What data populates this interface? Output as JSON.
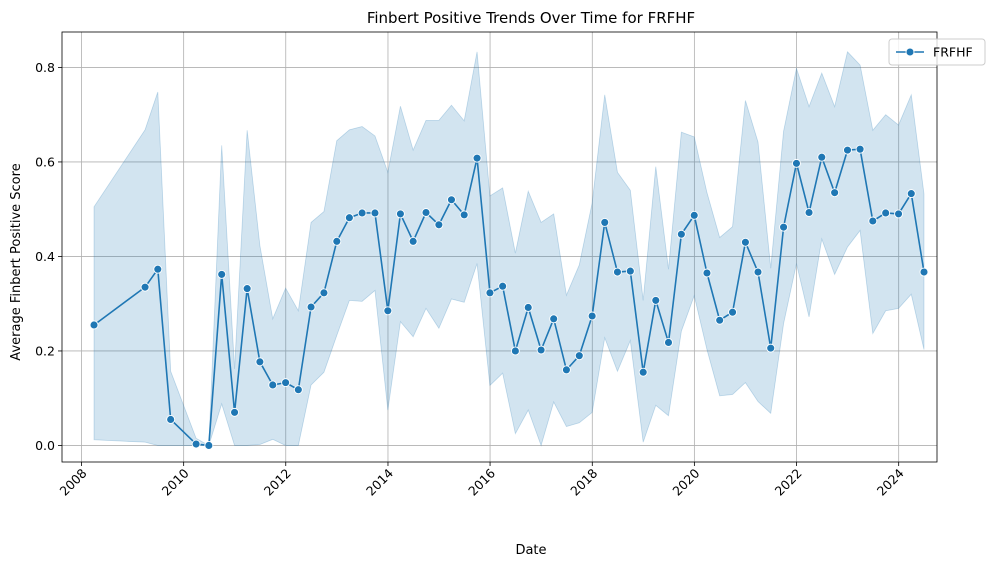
{
  "chart_data": {
    "type": "line",
    "title": "Finbert Positive Trends Over Time for FRFHF",
    "xlabel": "Date",
    "ylabel": "Average Finbert Positive Score",
    "xlim": [
      "2007-08-15",
      "2024-10-01"
    ],
    "ylim": [
      -0.035,
      0.875
    ],
    "x_ticks": [
      "2008",
      "2010",
      "2012",
      "2014",
      "2016",
      "2018",
      "2020",
      "2022",
      "2024"
    ],
    "y_ticks": [
      "0.0",
      "0.2",
      "0.4",
      "0.6",
      "0.8"
    ],
    "grid": true,
    "legend_position": "top-right",
    "colors": {
      "line": "#1f77b4",
      "band": "#1f77b4",
      "grid": "#b0b0b0"
    },
    "series": [
      {
        "name": "FRFHF",
        "x": [
          "2008-03-31",
          "2009-03-31",
          "2009-06-30",
          "2009-09-30",
          "2010-03-31",
          "2010-06-30",
          "2010-09-30",
          "2010-12-31",
          "2011-03-31",
          "2011-06-30",
          "2011-09-30",
          "2011-12-31",
          "2012-03-31",
          "2012-06-30",
          "2012-09-30",
          "2012-12-31",
          "2013-03-31",
          "2013-06-30",
          "2013-09-30",
          "2013-12-31",
          "2014-03-31",
          "2014-06-30",
          "2014-09-30",
          "2014-12-31",
          "2015-03-31",
          "2015-06-30",
          "2015-09-30",
          "2015-12-31",
          "2016-03-31",
          "2016-06-30",
          "2016-09-30",
          "2016-12-31",
          "2017-03-31",
          "2017-06-30",
          "2017-09-30",
          "2017-12-31",
          "2018-03-31",
          "2018-06-30",
          "2018-09-30",
          "2018-12-31",
          "2019-03-31",
          "2019-06-30",
          "2019-09-30",
          "2019-12-31",
          "2020-03-31",
          "2020-06-30",
          "2020-09-30",
          "2020-12-31",
          "2021-03-31",
          "2021-06-30",
          "2021-09-30",
          "2021-12-31",
          "2022-03-31",
          "2022-06-30",
          "2022-09-30",
          "2022-12-31",
          "2023-03-31",
          "2023-06-30",
          "2023-09-30",
          "2023-12-31",
          "2024-03-31",
          "2024-06-30"
        ],
        "values": [
          0.255,
          0.335,
          0.373,
          0.055,
          0.003,
          0.0,
          0.362,
          0.07,
          0.332,
          0.177,
          0.128,
          0.133,
          0.118,
          0.293,
          0.323,
          0.432,
          0.482,
          0.492,
          0.492,
          0.285,
          0.49,
          0.432,
          0.493,
          0.467,
          0.52,
          0.488,
          0.608,
          0.323,
          0.337,
          0.2,
          0.292,
          0.202,
          0.268,
          0.16,
          0.19,
          0.274,
          0.472,
          0.367,
          0.369,
          0.155,
          0.307,
          0.218,
          0.447,
          0.487,
          0.365,
          0.265,
          0.282,
          0.43,
          0.367,
          0.206,
          0.462,
          0.597,
          0.493,
          0.61,
          0.535,
          0.625,
          0.627,
          0.475,
          0.492,
          0.49,
          0.533,
          0.367
        ],
        "lower": [
          0.012,
          0.007,
          0.0,
          0.0,
          0.0,
          0.0,
          0.088,
          0.0,
          0.0,
          0.002,
          0.013,
          0.0,
          0.0,
          0.128,
          0.155,
          0.233,
          0.307,
          0.305,
          0.328,
          0.075,
          0.262,
          0.23,
          0.29,
          0.248,
          0.31,
          0.303,
          0.385,
          0.127,
          0.153,
          0.025,
          0.075,
          0.0,
          0.092,
          0.04,
          0.048,
          0.07,
          0.228,
          0.157,
          0.222,
          0.007,
          0.085,
          0.063,
          0.242,
          0.317,
          0.203,
          0.105,
          0.108,
          0.133,
          0.093,
          0.068,
          0.258,
          0.385,
          0.272,
          0.437,
          0.362,
          0.42,
          0.455,
          0.237,
          0.285,
          0.29,
          0.32,
          0.203
        ],
        "upper": [
          0.505,
          0.668,
          0.748,
          0.157,
          0.015,
          0.0,
          0.635,
          0.162,
          0.667,
          0.423,
          0.268,
          0.333,
          0.285,
          0.472,
          0.495,
          0.645,
          0.668,
          0.675,
          0.655,
          0.578,
          0.718,
          0.625,
          0.688,
          0.688,
          0.72,
          0.687,
          0.833,
          0.528,
          0.545,
          0.407,
          0.538,
          0.472,
          0.49,
          0.318,
          0.382,
          0.513,
          0.742,
          0.578,
          0.54,
          0.307,
          0.59,
          0.373,
          0.663,
          0.653,
          0.535,
          0.44,
          0.463,
          0.73,
          0.642,
          0.375,
          0.665,
          0.798,
          0.717,
          0.788,
          0.717,
          0.833,
          0.805,
          0.667,
          0.7,
          0.678,
          0.742,
          0.532
        ]
      }
    ]
  }
}
